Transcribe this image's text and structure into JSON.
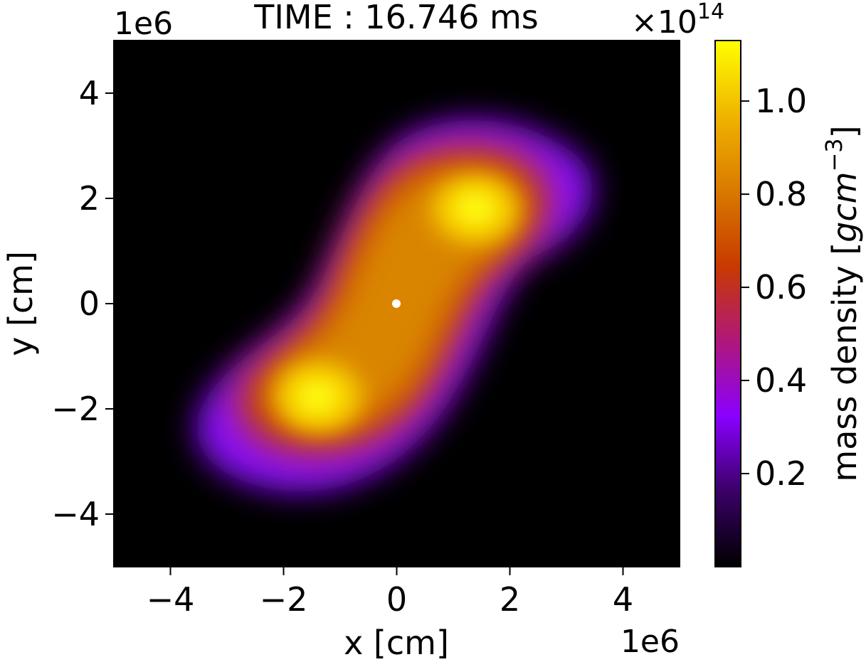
{
  "chart_data": {
    "type": "heatmap",
    "title": "TIME : 16.746 ms",
    "xlabel": "x [cm]",
    "ylabel": "y [cm]",
    "x_offset_label": "1e6",
    "y_offset_label": "1e6",
    "xlim": [
      -5,
      5
    ],
    "ylim": [
      -5,
      5
    ],
    "axis_scale": 1000000,
    "x_ticks": [
      -4,
      -2,
      0,
      2,
      4
    ],
    "y_ticks": [
      -4,
      -2,
      0,
      2,
      4
    ],
    "x_tick_labels": [
      "−4",
      "−2",
      "0",
      "2",
      "4"
    ],
    "y_tick_labels": [
      "−4",
      "−2",
      "0",
      "2",
      "4"
    ],
    "grid": false,
    "colormap": "gnuplot",
    "colorbar": {
      "label": "mass density [gcm⁻³]",
      "label_main": "mass density [",
      "label_unit_g": "g",
      "label_unit_cm": "cm",
      "label_unit_exp": "−3",
      "label_close": "]",
      "offset_label": "×10",
      "offset_exponent": "14",
      "scale": 100000000000000.0,
      "range": [
        0.0,
        1.13
      ],
      "ticks": [
        0.2,
        0.4,
        0.6,
        0.8,
        1.0
      ],
      "tick_labels": [
        "0.2",
        "0.4",
        "0.6",
        "0.8",
        "1.0"
      ],
      "colors": [
        "#000000",
        "#3a0066",
        "#8a00ff",
        "#b0177a",
        "#c83a00",
        "#d97a00",
        "#f0b400",
        "#ffff00"
      ]
    },
    "density_peaks": [
      {
        "x": 1.4,
        "y": 1.8,
        "value": 1.13
      },
      {
        "x": -1.4,
        "y": -1.8,
        "value": 1.13
      }
    ],
    "center_marker": {
      "x": 0,
      "y": 0,
      "color": "#ffffff"
    }
  }
}
